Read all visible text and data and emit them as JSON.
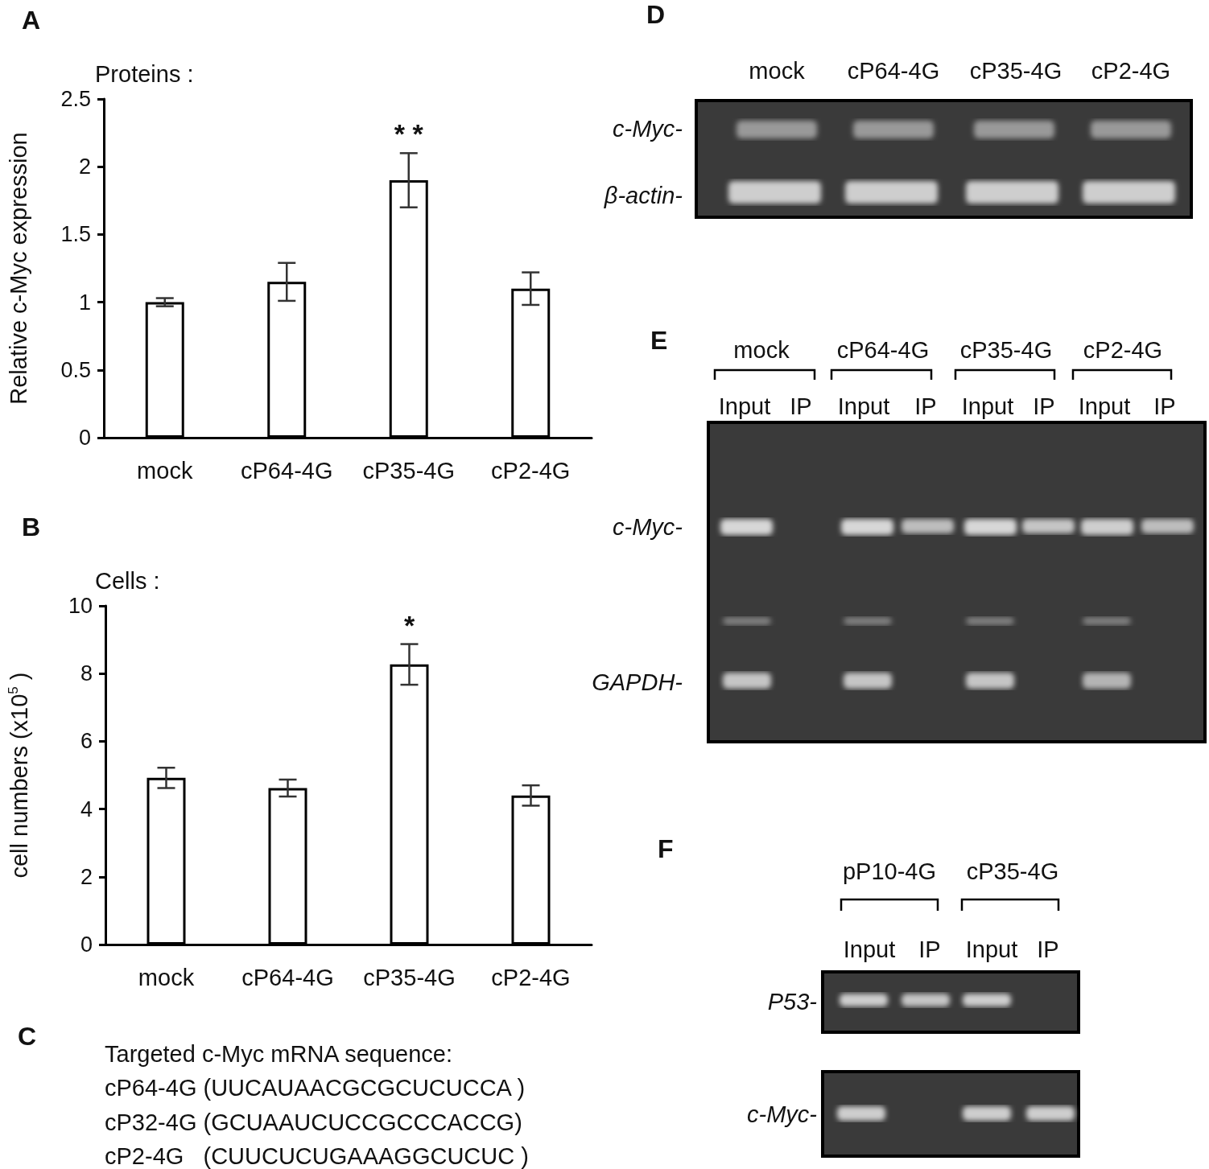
{
  "chart_data": [
    {
      "type": "bar",
      "title": "A",
      "subtitle": "Proteins :",
      "ylabel": "Relative c-Myc expression",
      "categories": [
        "mock",
        "cP64-4G",
        "cP35-4G",
        "cP2-4G"
      ],
      "values": [
        1.0,
        1.15,
        1.9,
        1.1
      ],
      "errors": [
        0.03,
        0.14,
        0.2,
        0.12
      ],
      "color": "#ffffff",
      "ylim": [
        0,
        2.5
      ],
      "yticks": [
        0,
        0.5,
        1,
        1.5,
        2,
        2.5
      ],
      "grid": false,
      "annotations": [
        "* *"
      ]
    },
    {
      "type": "bar",
      "title": "B",
      "subtitle": "Cells :",
      "ylabel": "cell numbers (x10$^{5}$ )",
      "categories": [
        "mock",
        "cP64-4G",
        "cP35-4G",
        "cP2-4G"
      ],
      "values": [
        4.92,
        4.62,
        8.27,
        4.4
      ],
      "errors": [
        0.3,
        0.25,
        0.6,
        0.3
      ],
      "color": "#ffffff",
      "ylim": [
        0,
        10
      ],
      "yticks": [
        0,
        2,
        4,
        6,
        8,
        10
      ],
      "grid": false,
      "annotations": [
        "*"
      ]
    },
    {
      "type": "other",
      "title": "C",
      "annotations": [
        "Targeted c-Myc mRNA sequence:",
        "cP64-4G (UUCAUAACGCGCUCUCCA )",
        "cP32-4G (GCUAAUCUCCGCCCACCG)",
        "cP2-4G   (CUUCUCUGAAAGGCUCUC )"
      ]
    },
    {
      "type": "other",
      "title": "D",
      "annotations": [
        "mock",
        "cP64-4G",
        "cP35-4G",
        "cP2-4G",
        "c-Myc-",
        "β-actin-"
      ]
    },
    {
      "type": "other",
      "title": "E",
      "annotations": [
        "mock",
        "cP64-4G",
        "cP35-4G",
        "cP2-4G",
        "Input",
        "IP",
        "Input",
        "IP",
        "Input",
        "IP",
        "Input",
        "IP",
        "c-Myc-",
        "GAPDH-"
      ]
    },
    {
      "type": "other",
      "title": "F",
      "annotations": [
        "pP10-4G",
        "cP35-4G",
        "Input",
        "IP",
        "Input",
        "IP",
        "P53-",
        "c-Myc-"
      ]
    }
  ]
}
